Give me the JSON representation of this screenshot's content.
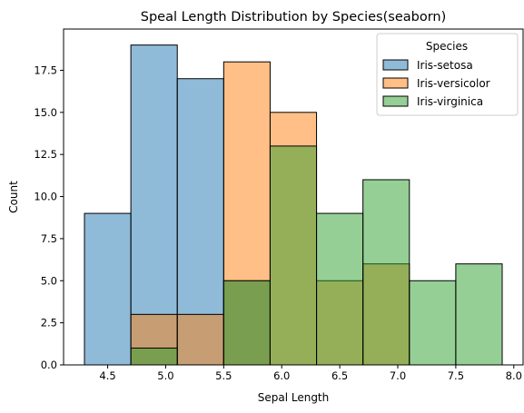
{
  "chart_data": {
    "type": "bar",
    "title": "Speal Length Distribution by Species(seaborn)",
    "xlabel": "Sepal Length",
    "ylabel": "Count",
    "xlim": [
      4.12,
      8.08
    ],
    "ylim": [
      0,
      19.95
    ],
    "xticks": [
      4.5,
      5.0,
      5.5,
      6.0,
      6.5,
      7.0,
      7.5,
      8.0
    ],
    "xtick_labels": [
      "4.5",
      "5.0",
      "5.5",
      "6.0",
      "6.5",
      "7.0",
      "7.5",
      "8.0"
    ],
    "yticks": [
      0,
      2.5,
      5,
      7.5,
      10,
      12.5,
      15,
      17.5
    ],
    "ytick_labels": [
      "0.0",
      "2.5",
      "5.0",
      "7.5",
      "10.0",
      "12.5",
      "15.0",
      "17.5"
    ],
    "bin_edges": [
      4.3,
      4.7,
      5.1,
      5.5,
      5.9,
      6.3,
      6.7,
      7.1,
      7.5,
      7.9
    ],
    "series": [
      {
        "name": "Iris-setosa",
        "color": "#1f77b4",
        "values": [
          9,
          19,
          17,
          5,
          0,
          0,
          0,
          0,
          0
        ]
      },
      {
        "name": "Iris-versicolor",
        "color": "#ff7f0e",
        "values": [
          0,
          3,
          3,
          18,
          15,
          5,
          6,
          0,
          0
        ]
      },
      {
        "name": "Iris-virginica",
        "color": "#2ca02c",
        "values": [
          0,
          1,
          0,
          5,
          13,
          9,
          11,
          5,
          6
        ]
      }
    ],
    "legend": {
      "title": "Species",
      "placement": "top-right"
    },
    "grid": false
  }
}
